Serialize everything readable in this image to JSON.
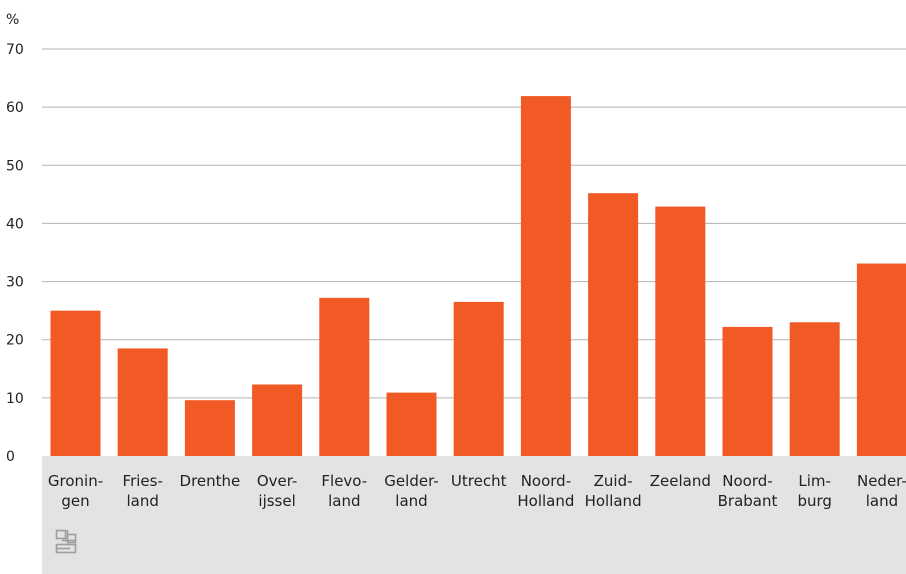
{
  "chart_data": {
    "type": "bar",
    "ylabel": "%",
    "ylim": [
      0,
      70
    ],
    "yticks": [
      0,
      10,
      20,
      30,
      40,
      50,
      60,
      70
    ],
    "grid": true,
    "categories": [
      [
        "Gronin-",
        "gen"
      ],
      [
        "Fries-",
        "land"
      ],
      [
        "Drenthe"
      ],
      [
        "Over-",
        "ijssel"
      ],
      [
        "Flevo-",
        "land"
      ],
      [
        "Gelder-",
        "land"
      ],
      [
        "Utrecht"
      ],
      [
        "Noord-",
        "Holland"
      ],
      [
        "Zuid-",
        "Holland"
      ],
      [
        "Zeeland"
      ],
      [
        "Noord-",
        "Brabant"
      ],
      [
        "Lim-",
        "burg"
      ],
      [
        "Neder-",
        "land"
      ]
    ],
    "values": [
      25,
      18.5,
      9.6,
      12.3,
      27.2,
      10.9,
      26.5,
      61.9,
      45.2,
      42.9,
      22.2,
      23.0,
      33.1
    ],
    "colors": {
      "bar": "#f15a24",
      "grid": "#b3b3b3",
      "axis_panel": "#e3e3e3",
      "text": "#222222",
      "logo": "#9e9e9e"
    }
  }
}
